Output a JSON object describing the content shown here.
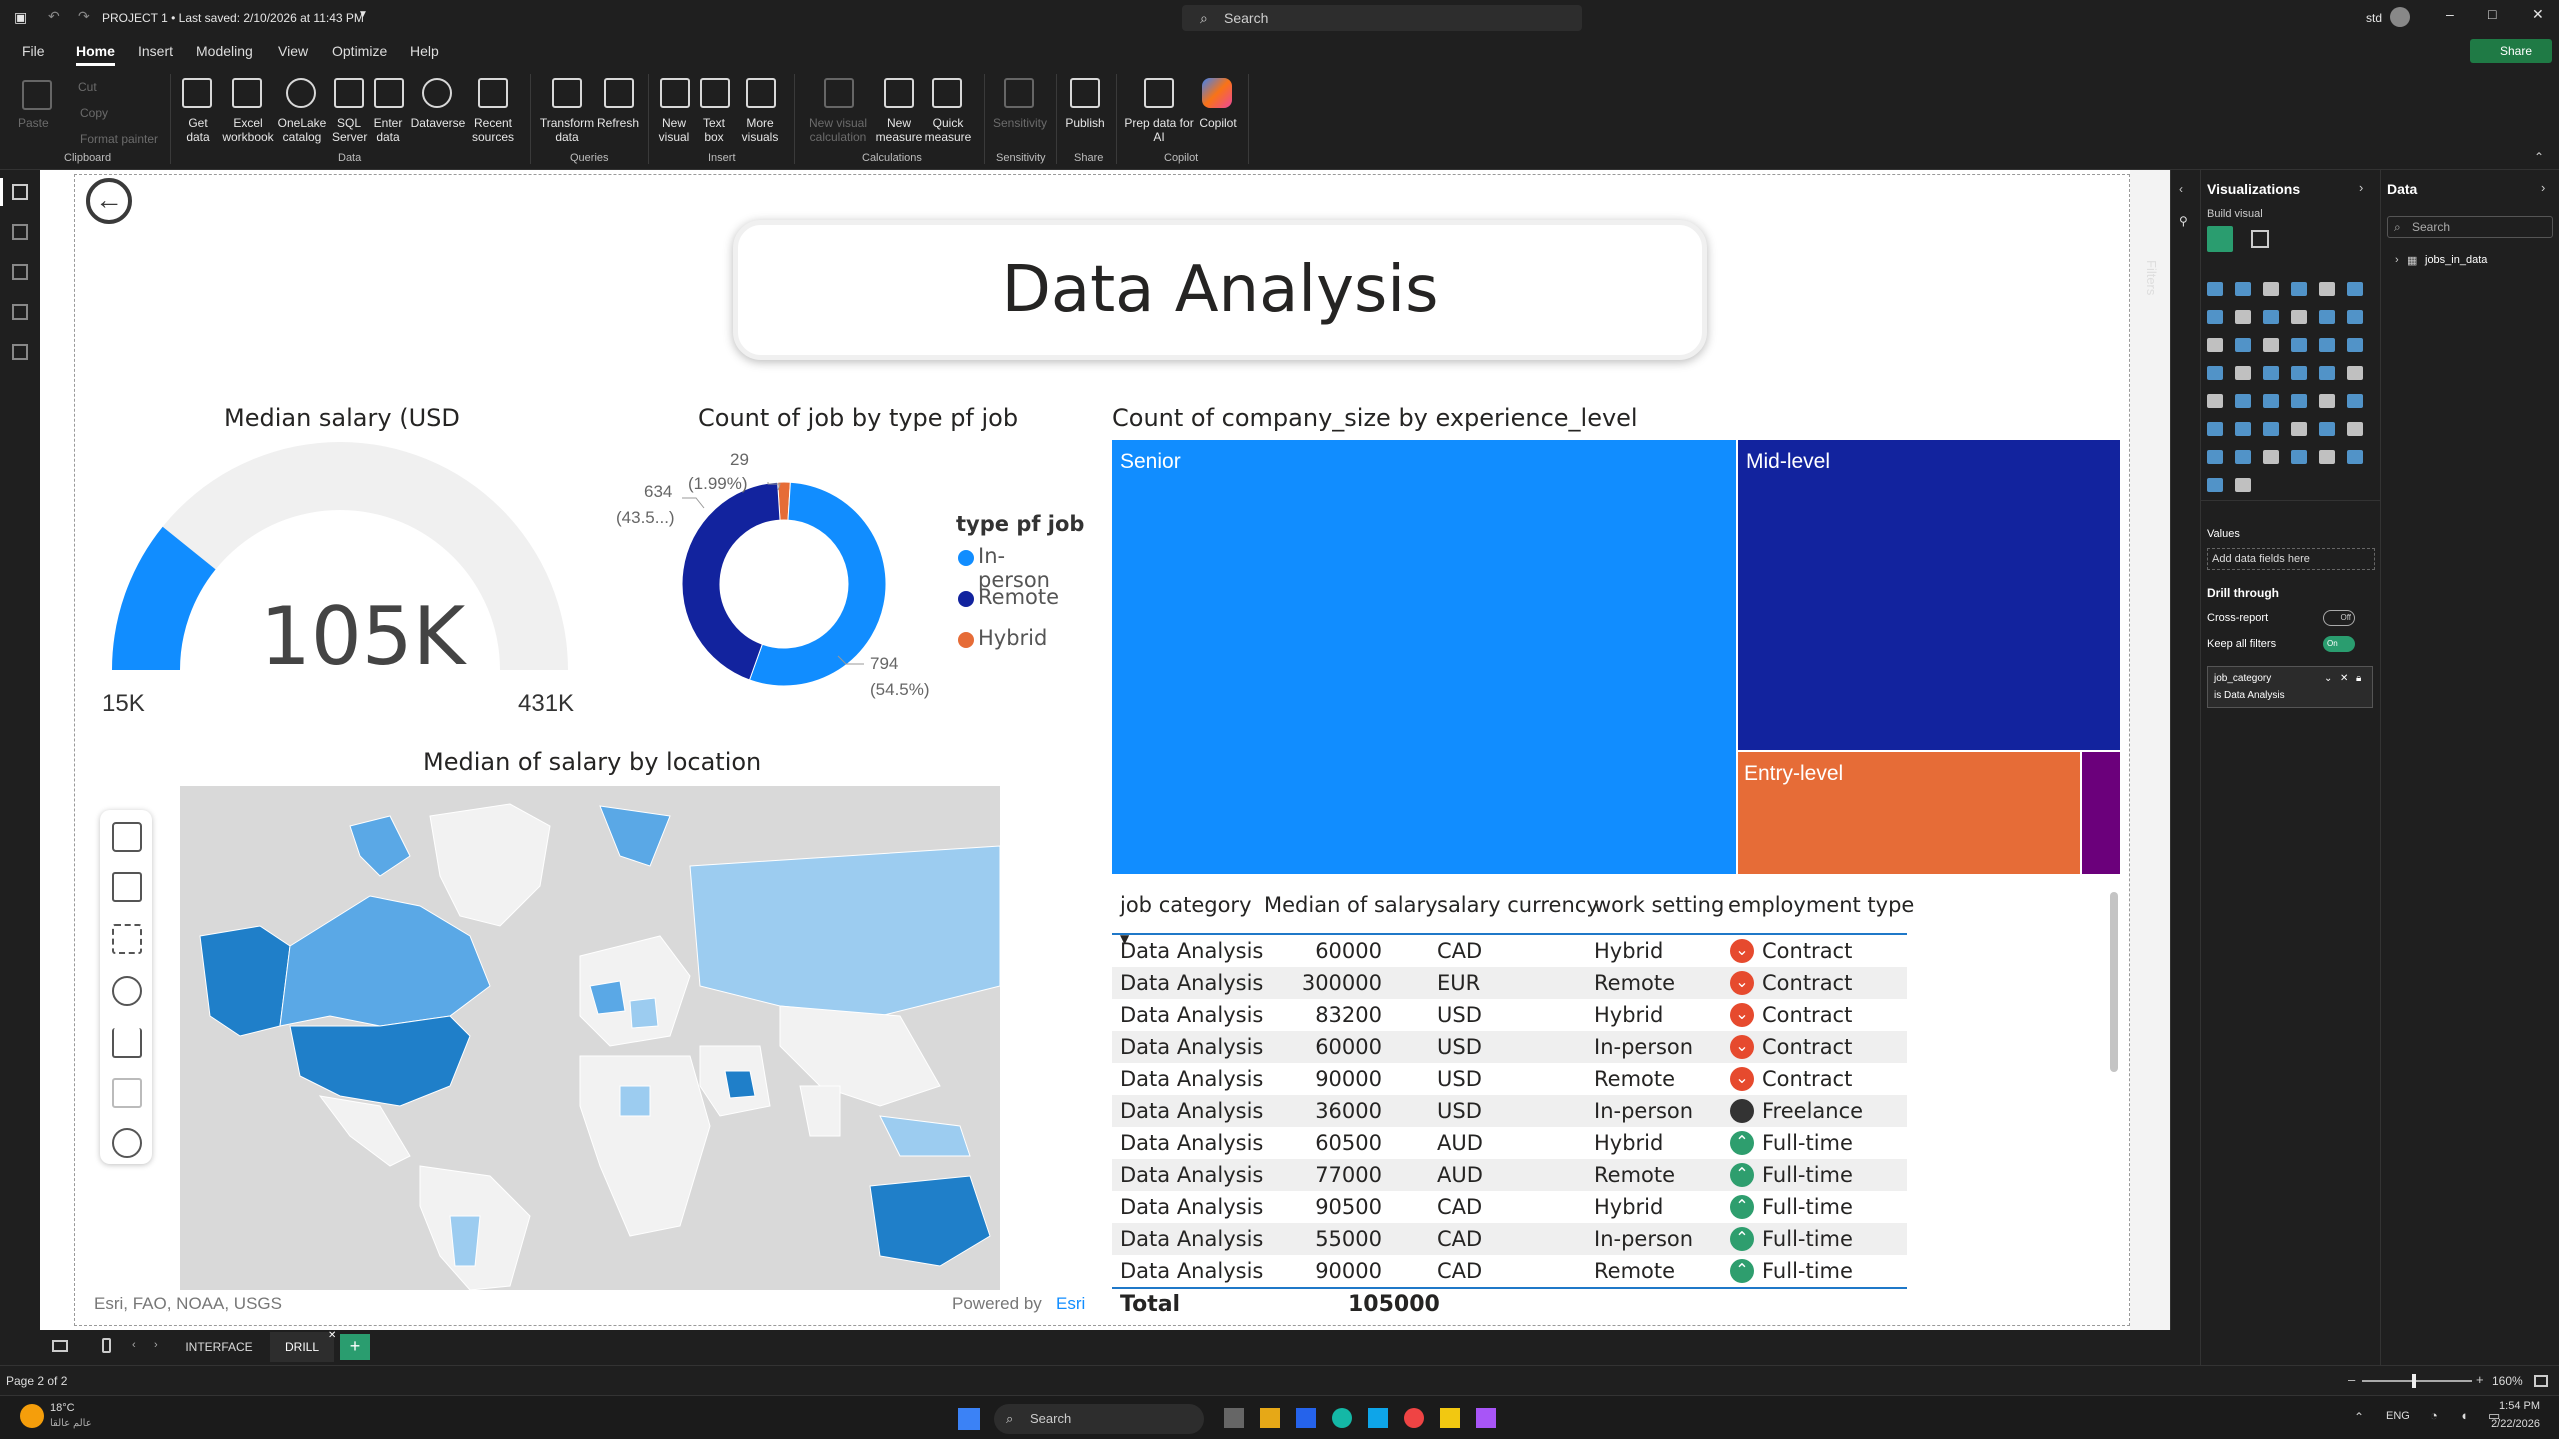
{
  "app": {
    "title": "PROJECT 1 • Last saved: 2/10/2026 at 11:43 PM",
    "search_placeholder": "Search",
    "user": "std",
    "share_label": "Share"
  },
  "menu": [
    "File",
    "Home",
    "Insert",
    "Modeling",
    "View",
    "Optimize",
    "Help"
  ],
  "ribbon": {
    "clipboard": {
      "paste": "Paste",
      "cut": "Cut",
      "copy": "Copy",
      "format_painter": "Format painter",
      "group": "Clipboard"
    },
    "data": {
      "get_data": "Get data",
      "excel": "Excel workbook",
      "onelake": "OneLake catalog",
      "sql": "SQL Server",
      "enter": "Enter data",
      "dataverse": "Dataverse",
      "recent": "Recent sources",
      "group": "Data"
    },
    "queries": {
      "transform": "Transform data",
      "refresh": "Refresh",
      "group": "Queries"
    },
    "insert": {
      "new_visual": "New visual",
      "text_box": "Text box",
      "more": "More visuals",
      "group": "Insert"
    },
    "calculations": {
      "new_visual_calc": "New visual calculation",
      "new_measure": "New measure",
      "quick_measure": "Quick measure",
      "group": "Calculations"
    },
    "sensitivity": {
      "label": "Sensitivity",
      "group": "Sensitivity"
    },
    "share": {
      "publish": "Publish",
      "group": "Share"
    },
    "copilot": {
      "prep": "Prep data for AI",
      "copilot": "Copilot",
      "group": "Copilot"
    }
  },
  "report": {
    "title": "Data Analysis",
    "gauge": {
      "title": "Median salary (USD",
      "value_label": "105K",
      "min_label": "15K",
      "max_label": "431K",
      "min": 15000,
      "max": 431000,
      "value": 105000
    },
    "donut": {
      "title": "Count of job by type pf job",
      "legend_title": "type pf job",
      "label_29": "29",
      "label_29_pct": "(1.99%)",
      "label_634": "634",
      "label_634_pct": "(43.5...)",
      "label_794": "794",
      "label_794_pct": "(54.5%)"
    },
    "treemap": {
      "title": "Count of company_size by experience_level"
    },
    "map": {
      "title": "Median of salary by location",
      "attribution": "Esri, FAO, NOAA, USGS",
      "powered": "Powered by",
      "esri": "Esri"
    },
    "table": {
      "headers": [
        "job category",
        "Median of salary",
        "salary currency",
        "work setting",
        "employment type"
      ],
      "rows": [
        [
          "Data Analysis",
          "60000",
          "CAD",
          "Hybrid",
          "Contract"
        ],
        [
          "Data Analysis",
          "300000",
          "EUR",
          "Remote",
          "Contract"
        ],
        [
          "Data Analysis",
          "83200",
          "USD",
          "Hybrid",
          "Contract"
        ],
        [
          "Data Analysis",
          "60000",
          "USD",
          "In-person",
          "Contract"
        ],
        [
          "Data Analysis",
          "90000",
          "USD",
          "Remote",
          "Contract"
        ],
        [
          "Data Analysis",
          "36000",
          "USD",
          "In-person",
          "Freelance"
        ],
        [
          "Data Analysis",
          "60500",
          "AUD",
          "Hybrid",
          "Full-time"
        ],
        [
          "Data Analysis",
          "77000",
          "AUD",
          "Remote",
          "Full-time"
        ],
        [
          "Data Analysis",
          "90500",
          "CAD",
          "Hybrid",
          "Full-time"
        ],
        [
          "Data Analysis",
          "55000",
          "CAD",
          "In-person",
          "Full-time"
        ],
        [
          "Data Analysis",
          "90000",
          "CAD",
          "Remote",
          "Full-time"
        ]
      ],
      "total_label": "Total",
      "total_value": "105000"
    }
  },
  "chart_data": [
    {
      "type": "gauge",
      "title": "Median salary (USD",
      "min": 15000,
      "max": 431000,
      "value": 105000
    },
    {
      "type": "pie",
      "title": "Count of job by type pf job",
      "legend_title": "type pf job",
      "categories": [
        "In-person",
        "Remote",
        "Hybrid"
      ],
      "values": [
        794,
        634,
        29
      ],
      "colors": [
        "#118dff",
        "#12239e",
        "#e66c37"
      ]
    },
    {
      "type": "treemap",
      "title": "Count of company_size by experience_level",
      "categories": [
        "Senior",
        "Mid-level",
        "Entry-level",
        ""
      ],
      "colors": [
        "#118dff",
        "#12239e",
        "#e66c37",
        "#6b007b"
      ]
    }
  ],
  "pages": {
    "tabs": [
      "INTERFACE",
      "DRILL"
    ],
    "status": "Page 2 of 2",
    "zoom": "160%"
  },
  "panes": {
    "filters": "Filters",
    "viz_title": "Visualizations",
    "build_visual": "Build visual",
    "values": "Values",
    "add_fields": "Add data fields here",
    "drill_through": "Drill through",
    "cross_report": "Cross-report",
    "cross_state": "Off",
    "keep_filters": "Keep all filters",
    "keep_state": "On",
    "filter_field": "job_category",
    "filter_value": "is Data Analysis",
    "data_title": "Data",
    "data_search": "Search",
    "table_name": "jobs_in_data"
  },
  "taskbar": {
    "temp": "18°C",
    "weather_sub": "عالم عالقا",
    "search": "Search",
    "lang": "ENG",
    "time": "1:54 PM",
    "date": "2/22/2026"
  },
  "colors": {
    "accent": "#118dff",
    "dark": "#12239e",
    "orange": "#e66c37",
    "purple": "#6b007b",
    "map_fill": "#e6e6e6"
  }
}
